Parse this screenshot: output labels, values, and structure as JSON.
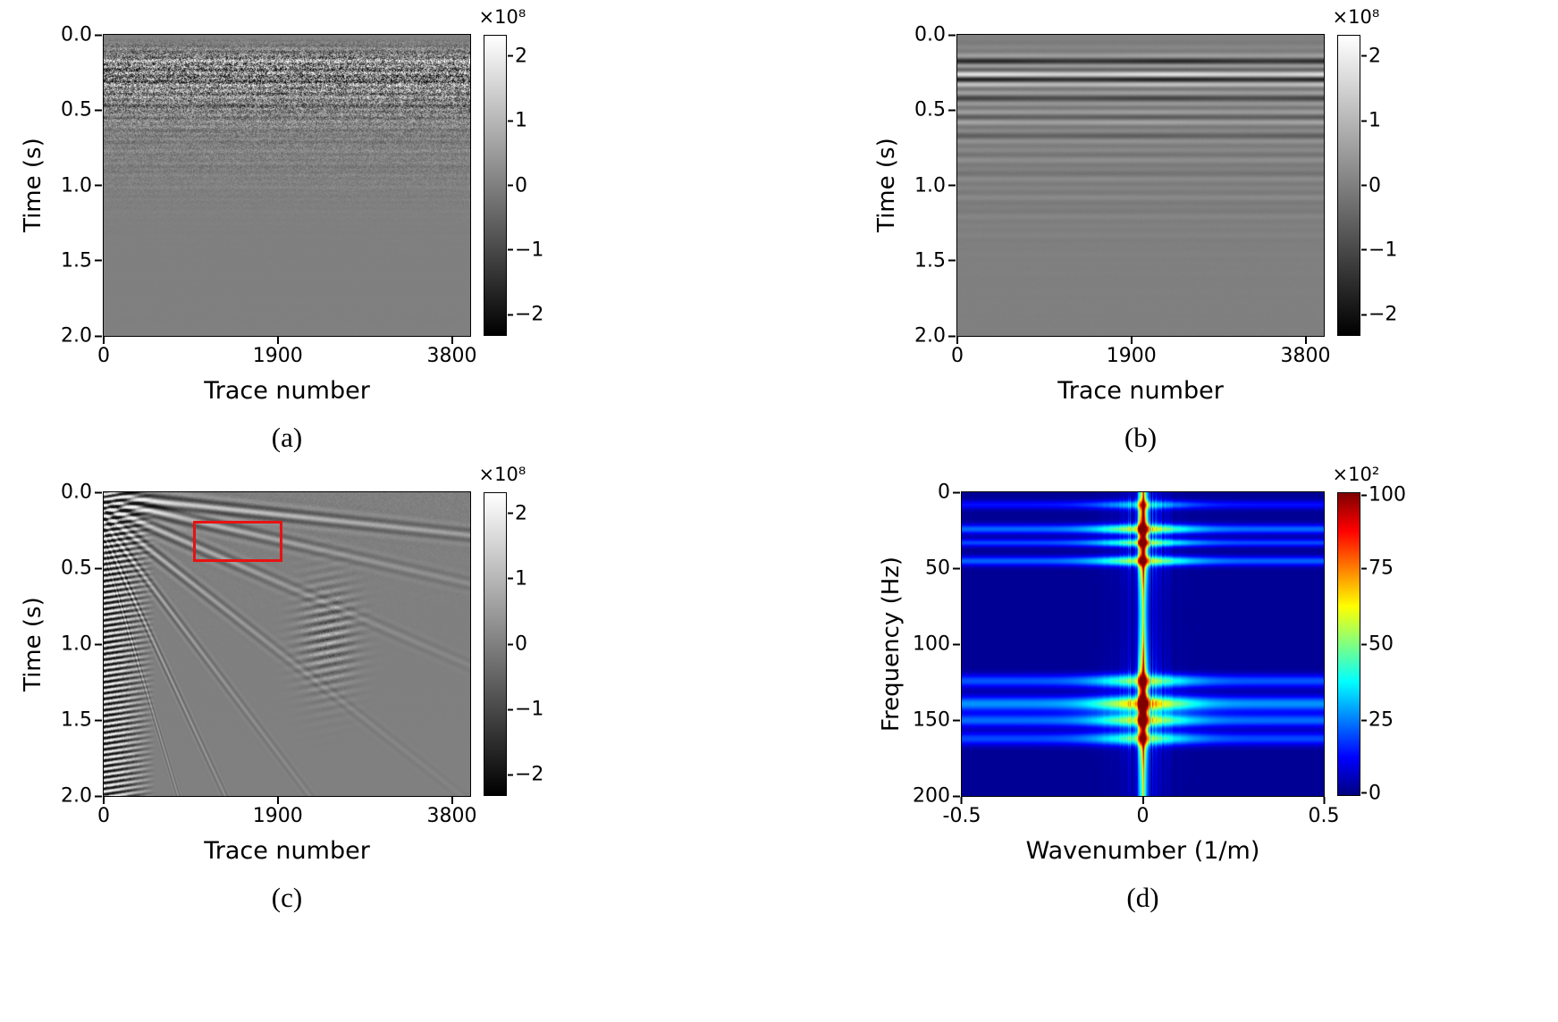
{
  "figure": {
    "panels": [
      {
        "id": "a",
        "caption": "(a)",
        "xlabel": "Trace number",
        "ylabel": "Time (s)",
        "xticks": [
          "0",
          "1900",
          "3800"
        ],
        "yticks": [
          "0.0",
          "0.5",
          "1.0",
          "1.5",
          "2.0"
        ],
        "colorbar": {
          "exponent_label": "×10⁸",
          "ticks": [
            "2",
            "1",
            "0",
            "−1",
            "−2"
          ]
        }
      },
      {
        "id": "b",
        "caption": "(b)",
        "xlabel": "Trace number",
        "ylabel": "Time (s)",
        "xticks": [
          "0",
          "1900",
          "3800"
        ],
        "yticks": [
          "0.0",
          "0.5",
          "1.0",
          "1.5",
          "2.0"
        ],
        "colorbar": {
          "exponent_label": "×10⁸",
          "ticks": [
            "2",
            "1",
            "0",
            "−1",
            "−2"
          ]
        }
      },
      {
        "id": "c",
        "caption": "(c)",
        "xlabel": "Trace number",
        "ylabel": "Time (s)",
        "xticks": [
          "0",
          "1900",
          "3800"
        ],
        "yticks": [
          "0.0",
          "0.5",
          "1.0",
          "1.5",
          "2.0"
        ],
        "colorbar": {
          "exponent_label": "×10⁸",
          "ticks": [
            "2",
            "1",
            "0",
            "−1",
            "−2"
          ]
        }
      },
      {
        "id": "d",
        "caption": "(d)",
        "xlabel": "Wavenumber (1/m)",
        "ylabel": "Frequency (Hz)",
        "xticks": [
          "-0.5",
          "0",
          "0.5"
        ],
        "yticks": [
          "0",
          "50",
          "100",
          "150",
          "200"
        ],
        "colorbar": {
          "exponent_label": "×10²",
          "ticks": [
            "100",
            "75",
            "50",
            "25",
            "0"
          ]
        }
      }
    ]
  },
  "chart_data": [
    {
      "type": "heatmap",
      "panel": "(a)",
      "title": "",
      "xlabel": "Trace number",
      "ylabel": "Time (s)",
      "xlim": [
        0,
        4000
      ],
      "ylim": [
        2.0,
        0.0
      ],
      "xticks": [
        0,
        1900,
        3800
      ],
      "yticks": [
        0.0,
        0.5,
        1.0,
        1.5,
        2.0
      ],
      "colormap": "gray",
      "colorbar_scale": "×10^8",
      "colorbar_ticks": [
        2,
        1,
        0,
        -1,
        -2
      ],
      "colorbar_range": [
        -230000000.0,
        230000000.0
      ],
      "description": "Raw noisy seismic record: dense high-frequency speckle and horizontal coherent events across all traces between about 0.05 s and 0.6 s, amplitude fading to uniform mid-gray below roughly 1.0 s."
    },
    {
      "type": "heatmap",
      "panel": "(b)",
      "title": "",
      "xlabel": "Trace number",
      "ylabel": "Time (s)",
      "xlim": [
        0,
        4000
      ],
      "ylim": [
        2.0,
        0.0
      ],
      "xticks": [
        0,
        1900,
        3800
      ],
      "yticks": [
        0.0,
        0.5,
        1.0,
        1.5,
        2.0
      ],
      "colormap": "gray",
      "colorbar_scale": "×10^8",
      "colorbar_ticks": [
        2,
        1,
        0,
        -1,
        -2
      ],
      "colorbar_range": [
        -230000000.0,
        230000000.0
      ],
      "description": "Laterally coherent component of the record: smooth alternating dark/light horizontal bands spanning all traces, strongest between 0.1 s and 0.5 s, gradually fading to uniform gray by about 1.2 s."
    },
    {
      "type": "heatmap",
      "panel": "(c)",
      "title": "",
      "xlabel": "Trace number",
      "ylabel": "Time (s)",
      "xlim": [
        0,
        4000
      ],
      "ylim": [
        2.0,
        0.0
      ],
      "xticks": [
        0,
        1900,
        3800
      ],
      "yticks": [
        0.0,
        0.5,
        1.0,
        1.5,
        2.0
      ],
      "colormap": "gray",
      "colorbar_scale": "×10^8",
      "colorbar_ticks": [
        2,
        1,
        0,
        -1,
        -2
      ],
      "colorbar_range": [
        -230000000.0,
        230000000.0
      ],
      "annotations": [
        {
          "type": "rect",
          "color": "#e81212",
          "trace_range": [
            950,
            1900
          ],
          "time_range_s": [
            0.19,
            0.42
          ]
        }
      ],
      "description": "Shot-gather-like residual: very strong black/white reverberating column at low trace numbers extending the full 2 s, a fan of dipping linear events spreading from the upper-left corner (slowest event reaching the right edge near 0.25 s), a patch of scattered wavy energy around traces 2100-2800 between 0.6 s and 1.3 s, and a red rectangle highlighting a weak dipping event near traces 950-1900 at 0.2-0.4 s."
    },
    {
      "type": "heatmap",
      "panel": "(d)",
      "title": "",
      "xlabel": "Wavenumber (1/m)",
      "ylabel": "Frequency (Hz)",
      "xlim": [
        -0.5,
        0.5
      ],
      "ylim": [
        200,
        0
      ],
      "xticks": [
        -0.5,
        0,
        0.5
      ],
      "yticks": [
        0,
        50,
        100,
        150,
        200
      ],
      "colormap": "jet",
      "colorbar_scale": "×10^2",
      "colorbar_ticks": [
        100,
        75,
        50,
        25,
        0
      ],
      "colorbar_range": [
        0,
        100
      ],
      "description": "F-K amplitude spectrum on a dark-blue background: a narrow vertical high-amplitude ridge at wavenumber 0 over all frequencies with saturated red maxima near 10-50 Hz and 120-165 Hz, thin vertical cyan fringes within |k| < 0.1, and horizontal cyan/light-blue bands crossing the full wavenumber axis near 24, 33, 45 Hz and 124-163 Hz."
    }
  ]
}
